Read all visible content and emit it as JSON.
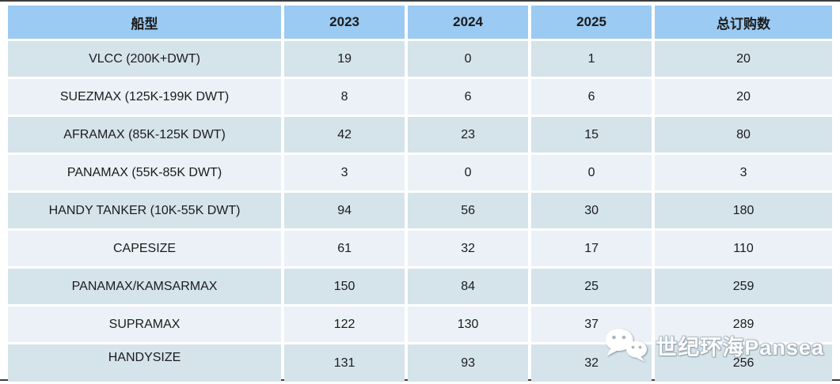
{
  "chart_data": {
    "type": "table",
    "columns": [
      "船型",
      "2023",
      "2024",
      "2025",
      "总订购数"
    ],
    "rows": [
      {
        "label": "VLCC (200K+DWT)",
        "values": [
          "19",
          "0",
          "1",
          "20"
        ]
      },
      {
        "label": "SUEZMAX (125K-199K DWT)",
        "values": [
          "8",
          "6",
          "6",
          "20"
        ]
      },
      {
        "label": "AFRAMAX (85K-125K DWT)",
        "values": [
          "42",
          "23",
          "15",
          "80"
        ]
      },
      {
        "label": "PANAMAX (55K-85K DWT)",
        "values": [
          "3",
          "0",
          "0",
          "3"
        ]
      },
      {
        "label": "HANDY TANKER (10K-55K DWT)",
        "values": [
          "94",
          "56",
          "30",
          "180"
        ]
      },
      {
        "label": "CAPESIZE",
        "values": [
          "61",
          "32",
          "17",
          "110"
        ]
      },
      {
        "label": "PANAMAX/KAMSARMAX",
        "values": [
          "150",
          "84",
          "25",
          "259"
        ]
      },
      {
        "label": "SUPRAMAX",
        "values": [
          "122",
          "130",
          "37",
          "289"
        ]
      },
      {
        "label": "HANDYSIZE",
        "values": [
          "131",
          "93",
          "32",
          "256"
        ]
      }
    ]
  },
  "watermark": {
    "icon": "wechat-icon",
    "text": "世纪环海Pansea"
  },
  "colors": {
    "header_bg": "#9bcaf2",
    "row_dark": "#d5e3eb",
    "row_light": "#ebf1f6",
    "text": "#1b1b1b",
    "rule": "#3d3d3d"
  }
}
